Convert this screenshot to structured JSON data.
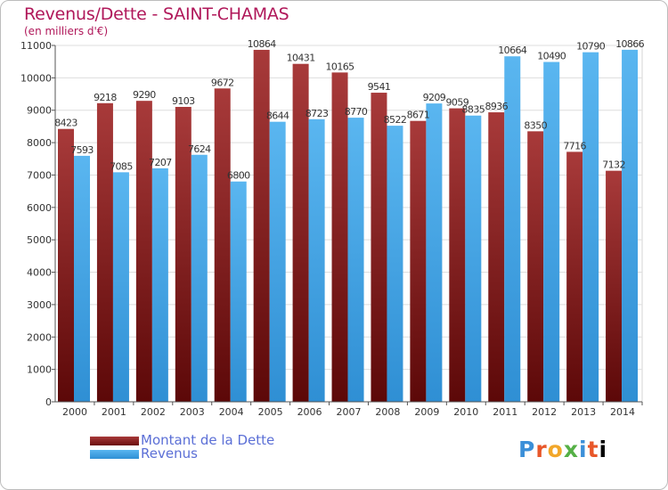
{
  "header": {
    "title": "Revenus/Dette - SAINT-CHAMAS",
    "subtitle": "(en milliers d'€)"
  },
  "legend": {
    "dette": "Montant de la Dette",
    "revenus": "Revenus"
  },
  "logo": {
    "text": "Proxiti"
  },
  "colors": {
    "dette_top": "#a83a3a",
    "dette_bottom": "#5c0808",
    "revenus_top": "#5ab6f0",
    "revenus_bottom": "#2f8fd4",
    "title": "#b0185a",
    "legend_text": "#5b6fd6"
  },
  "chart_data": {
    "type": "bar",
    "categories": [
      "2000",
      "2001",
      "2002",
      "2003",
      "2004",
      "2005",
      "2006",
      "2007",
      "2008",
      "2009",
      "2010",
      "2011",
      "2012",
      "2013",
      "2014"
    ],
    "series": [
      {
        "name": "Montant de la Dette",
        "values": [
          8423,
          9218,
          9290,
          9103,
          9672,
          10864,
          10431,
          10165,
          9541,
          8671,
          9059,
          8936,
          8350,
          7716,
          7132
        ]
      },
      {
        "name": "Revenus",
        "values": [
          7593,
          7085,
          7207,
          7624,
          6800,
          8644,
          8723,
          8770,
          8522,
          9209,
          8835,
          10664,
          10490,
          10790,
          10866
        ]
      }
    ],
    "ylim": [
      0,
      11000
    ],
    "yticks": [
      0,
      1000,
      2000,
      3000,
      4000,
      5000,
      6000,
      7000,
      8000,
      9000,
      10000,
      11000
    ],
    "grid": true,
    "legend_position": "bottom-left"
  }
}
